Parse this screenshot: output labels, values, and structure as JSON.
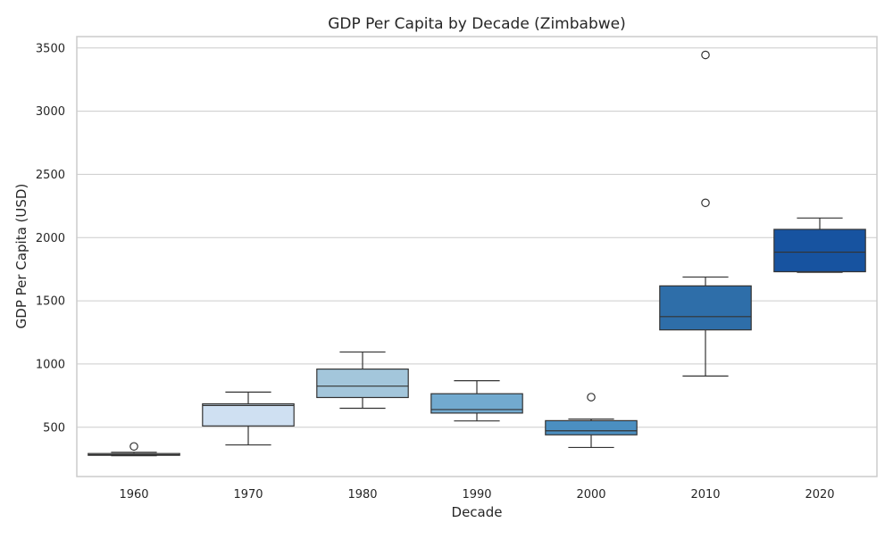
{
  "chart_data": {
    "type": "box",
    "title": "GDP Per Capita by Decade (Zimbabwe)",
    "xlabel": "Decade",
    "ylabel": "GDP Per Capita (USD)",
    "ylim": [
      110,
      3590
    ],
    "yticks": [
      500,
      1000,
      1500,
      2000,
      2500,
      3000,
      3500
    ],
    "grid": "horizontal",
    "categories": [
      "1960",
      "1970",
      "1980",
      "1990",
      "2000",
      "2010",
      "2020"
    ],
    "boxes": [
      {
        "category": "1960",
        "whisker_low": 275,
        "q1": 278,
        "median": 282,
        "q3": 292,
        "whisker_high": 302,
        "outliers": [
          348
        ],
        "color": "#f4f8fd"
      },
      {
        "category": "1970",
        "whisker_low": 360,
        "q1": 510,
        "median": 672,
        "q3": 685,
        "whisker_high": 778,
        "outliers": [],
        "color": "#cfe0f2"
      },
      {
        "category": "1980",
        "whisker_low": 650,
        "q1": 735,
        "median": 825,
        "q3": 960,
        "whisker_high": 1095,
        "outliers": [],
        "color": "#a3c6db"
      },
      {
        "category": "1990",
        "whisker_low": 550,
        "q1": 612,
        "median": 640,
        "q3": 765,
        "whisker_high": 868,
        "outliers": [],
        "color": "#72aacf"
      },
      {
        "category": "2000",
        "whisker_low": 340,
        "q1": 440,
        "median": 472,
        "q3": 552,
        "whisker_high": 565,
        "outliers": [
          738
        ],
        "color": "#4b8fc1"
      },
      {
        "category": "2010",
        "whisker_low": 905,
        "q1": 1270,
        "median": 1375,
        "q3": 1618,
        "whisker_high": 1688,
        "outliers": [
          2275,
          3445
        ],
        "color": "#2e6ea9"
      },
      {
        "category": "2020",
        "whisker_low": 1725,
        "q1": 1730,
        "median": 1885,
        "q3": 2065,
        "whisker_high": 2155,
        "outliers": [],
        "color": "#1753a0"
      }
    ]
  }
}
